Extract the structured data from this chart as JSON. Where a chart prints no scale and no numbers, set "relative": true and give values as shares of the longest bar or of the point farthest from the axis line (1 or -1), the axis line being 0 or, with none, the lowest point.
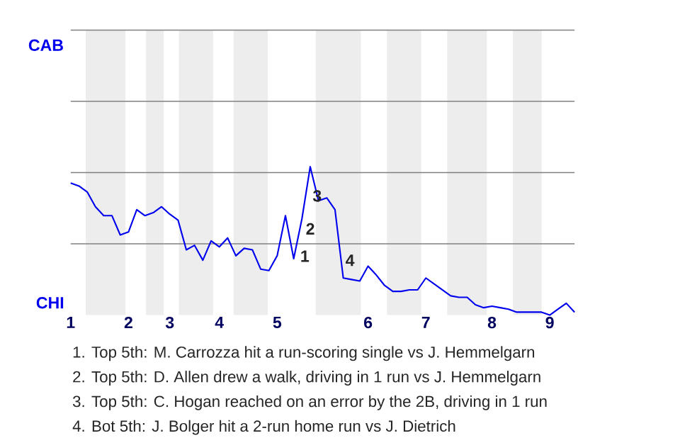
{
  "chart_data": {
    "type": "line",
    "relative": true,
    "categories": [
      "1",
      null,
      null,
      null,
      null,
      null,
      null,
      "2",
      null,
      null,
      null,
      null,
      "3",
      null,
      null,
      null,
      null,
      null,
      "4",
      null,
      null,
      null,
      null,
      null,
      null,
      "5",
      null,
      null,
      null,
      null,
      null,
      null,
      null,
      null,
      null,
      null,
      "6",
      null,
      null,
      null,
      null,
      null,
      null,
      "7",
      null,
      null,
      null,
      null,
      null,
      null,
      null,
      "8",
      null,
      null,
      null,
      null,
      null,
      null,
      "9",
      null,
      null,
      null
    ],
    "series": [
      {
        "color": "#0000ee",
        "values": [
          0.89,
          0.87,
          0.83,
          0.73,
          0.67,
          0.67,
          0.54,
          0.56,
          0.71,
          0.67,
          0.69,
          0.73,
          0.68,
          0.64,
          0.44,
          0.47,
          0.37,
          0.5,
          0.46,
          0.52,
          0.4,
          0.45,
          0.44,
          0.31,
          0.3,
          0.4,
          0.67,
          0.38,
          0.65,
          1,
          0.77,
          0.79,
          0.71,
          0.25,
          0.24,
          0.23,
          0.33,
          0.27,
          0.2,
          0.16,
          0.16,
          0.17,
          0.17,
          0.25,
          0.21,
          0.17,
          0.13,
          0.12,
          0.12,
          0.07,
          0.05,
          0.06,
          0.05,
          0.04,
          0.02,
          0.02,
          0.02,
          0.02,
          0,
          0.04,
          0.08,
          0.02
        ]
      }
    ],
    "ref_lines": [
      {
        "axis": "y",
        "value": 0.48,
        "color": "#808080"
      },
      {
        "axis": "y",
        "value": 0.96,
        "color": "#808080"
      },
      {
        "axis": "y",
        "value": 1.44,
        "color": "#808080"
      },
      {
        "axis": "y",
        "value": 1.92,
        "color": "#808080"
      }
    ],
    "annotations": [
      "CAB",
      "CHI",
      "1",
      "2",
      "3",
      "4",
      "1. Top 5th: M. Carrozza hit a run-scoring single vs J. Hemmelgarn",
      "2. Top 5th: D. Allen drew a walk, driving in 1 run vs J. Hemmelgarn",
      "3. Top 5th: C. Hogan reached on an error by the 2B, driving in 1 run",
      "4. Bot 5th: J. Bolger hit a 2-run home run vs J. Dietrich"
    ]
  }
}
